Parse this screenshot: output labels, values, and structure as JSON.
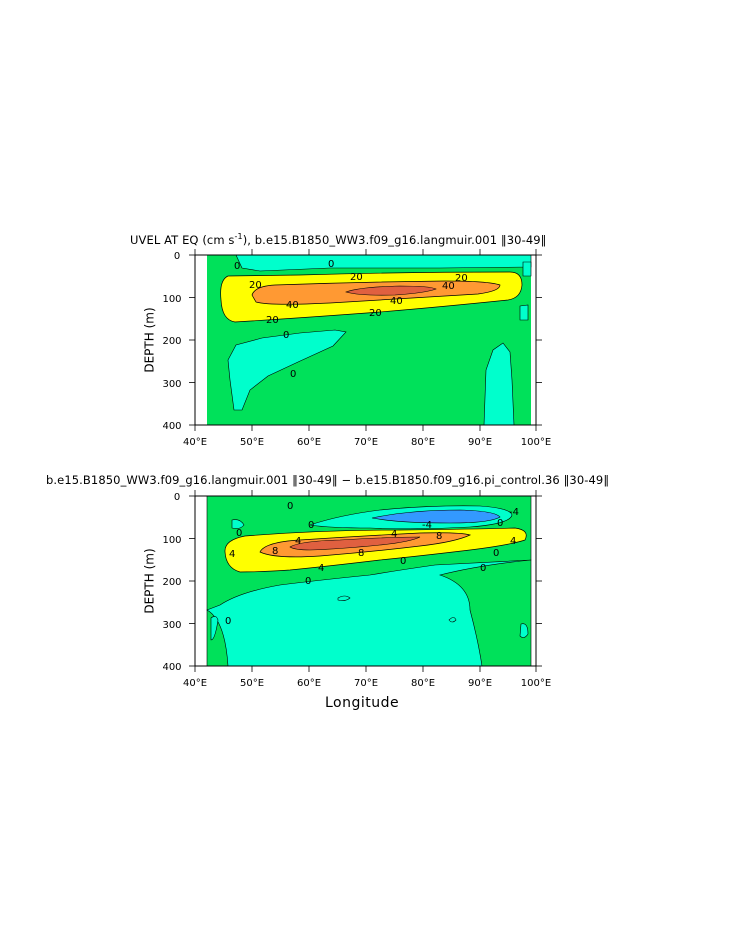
{
  "chart_data": [
    {
      "type": "contour",
      "title_prefix": "UVEL AT EQ (cm s",
      "title_sup": "-1",
      "title_suffix": "), b.e15.B1850_WW3.f09_g16.langmuir.001 ‖30-49‖",
      "ylabel": "DEPTH (m)",
      "xlabel": "",
      "xlim": [
        40,
        100
      ],
      "ylim": [
        0,
        400
      ],
      "x_ticks": [
        "40°E",
        "50°E",
        "60°E",
        "70°E",
        "80°E",
        "90°E",
        "100°E"
      ],
      "y_ticks": [
        "0",
        "100",
        "200",
        "300",
        "400"
      ],
      "contour_labels": [
        "0",
        "0",
        "20",
        "20",
        "20",
        "20",
        "20",
        "40",
        "40",
        "40",
        "0",
        "0"
      ],
      "levels": {
        "0": "#00ffcc",
        "0-20": "#00e15a",
        "20-40": "#ffff00",
        "40+": "#ff9933",
        "60+": "#e06040",
        "missing": "#ffffff"
      }
    },
    {
      "type": "contour",
      "title": "b.e15.B1850_WW3.f09_g16.langmuir.001 ‖30-49‖ − b.e15.B1850.f09_g16.pi_control.36 ‖30-49‖",
      "ylabel": "DEPTH (m)",
      "xlabel": "Longitude",
      "xlim": [
        40,
        100
      ],
      "ylim": [
        0,
        400
      ],
      "x_ticks": [
        "40°E",
        "50°E",
        "60°E",
        "70°E",
        "80°E",
        "90°E",
        "100°E"
      ],
      "y_ticks": [
        "0",
        "100",
        "200",
        "300",
        "400"
      ],
      "contour_labels": [
        "0",
        "0",
        "0",
        "4",
        "4",
        "4",
        "8",
        "8",
        "8",
        "4",
        "-4",
        "0",
        "0",
        "0",
        "0",
        "-4",
        "4",
        "0",
        "0"
      ],
      "levels": {
        "<-4": "#3399ff",
        "-4-0": "#00ffcc",
        "0-4": "#00e15a",
        "4-8": "#ffff00",
        "8-12": "#ff9933",
        "12+": "#e06040"
      }
    }
  ]
}
